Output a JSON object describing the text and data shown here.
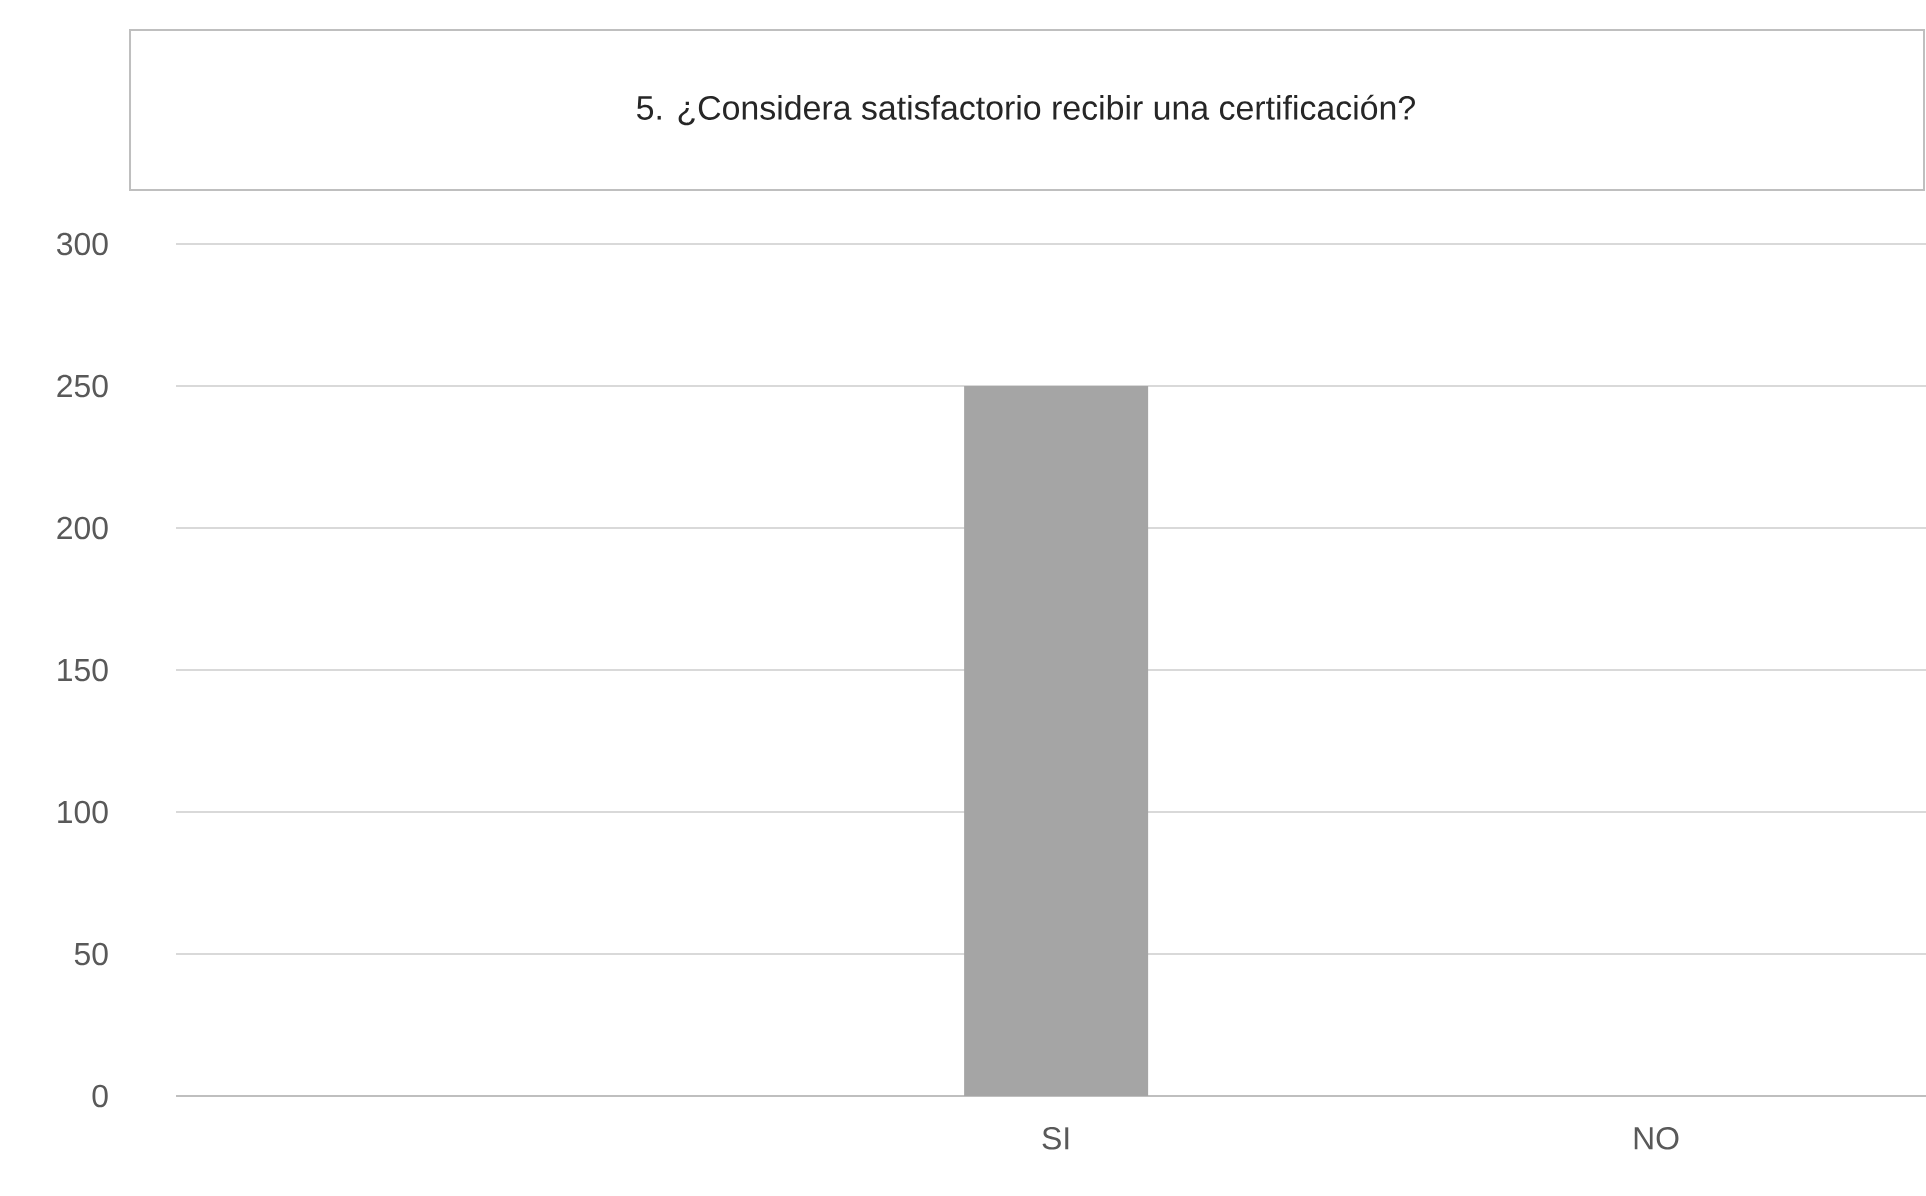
{
  "chart_data": {
    "type": "bar",
    "title": "5. ¿Considera satisfactorio recibir una certificación?",
    "categories": [
      null,
      "SI",
      "NO"
    ],
    "values": [
      null,
      250,
      0
    ],
    "color": "#a5a5a5",
    "ylim": [
      0,
      300
    ],
    "yticks": [
      0,
      50,
      100,
      150,
      200,
      250,
      300
    ],
    "grid": "y"
  }
}
